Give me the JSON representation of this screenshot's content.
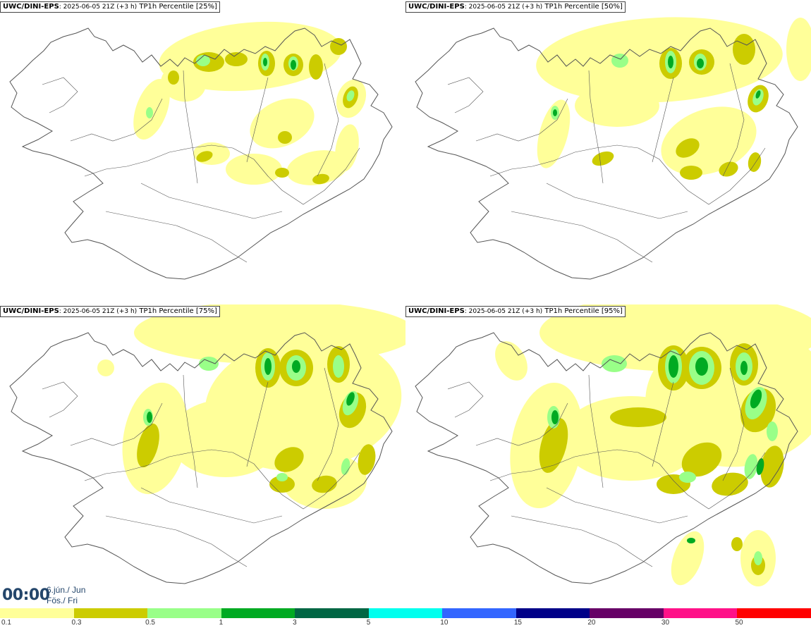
{
  "panels": [
    {
      "model": "UWC/DINI-EPS",
      "run": ": 2025-06-05 21Z (+3 h)",
      "field": " TP1h Percentile ",
      "percentile": "[25%]",
      "level": 1
    },
    {
      "model": "UWC/DINI-EPS",
      "run": ": 2025-06-05 21Z (+3 h)",
      "field": " TP1h Percentile ",
      "percentile": "[50%]",
      "level": 2
    },
    {
      "model": "UWC/DINI-EPS",
      "run": ": 2025-06-05 21Z (+3 h)",
      "field": " TP1h Percentile ",
      "percentile": "[75%]",
      "level": 3
    },
    {
      "model": "UWC/DINI-EPS",
      "run": ": 2025-06-05 21Z (+3 h)",
      "field": " TP1h Percentile ",
      "percentile": "[95%]",
      "level": 4
    }
  ],
  "time": {
    "clock": "00:00",
    "date_line1": "6.jún./ Jun",
    "date_line2": "Fös./ Fri"
  },
  "legend": [
    {
      "label": "0.1",
      "color": "#ffff99"
    },
    {
      "label": "0.3",
      "color": "#cccc00"
    },
    {
      "label": "0.5",
      "color": "#99ff88"
    },
    {
      "label": "1",
      "color": "#00aa22"
    },
    {
      "label": "3",
      "color": "#006644"
    },
    {
      "label": "5",
      "color": "#00ffee"
    },
    {
      "label": "10",
      "color": "#3366ff"
    },
    {
      "label": "15",
      "color": "#000088"
    },
    {
      "label": "20",
      "color": "#660066"
    },
    {
      "label": "30",
      "color": "#ff1188"
    },
    {
      "label": "50",
      "color": "#ff0000"
    }
  ],
  "colors": {
    "outline": "#555555",
    "pale": "#ffff99",
    "olive": "#cccc00",
    "light_green": "#99ff88",
    "green": "#00aa22",
    "dark_green": "#006644"
  }
}
